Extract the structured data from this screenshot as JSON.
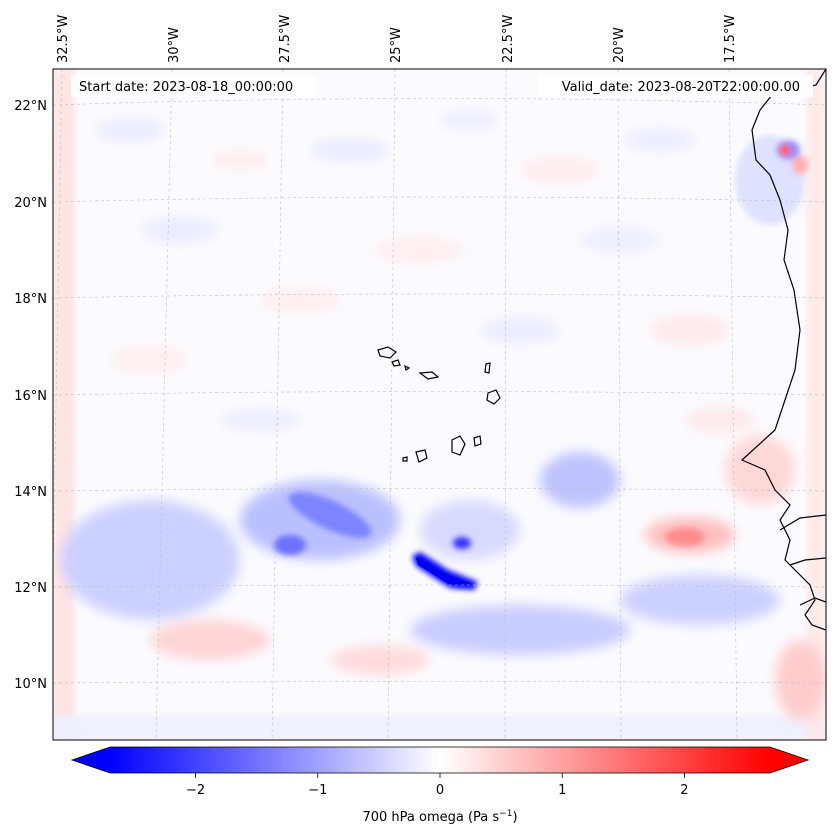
{
  "header": {
    "start_date": "Start date: 2023-08-18_00:00:00",
    "valid_date": "Valid_date: 2023-08-20T22:00:00.00"
  },
  "map": {
    "lon_labels": [
      "32.5°W",
      "30°W",
      "27.5°W",
      "25°W",
      "22.5°W",
      "20°W",
      "17.5°W"
    ],
    "lat_labels": [
      "22°N",
      "20°N",
      "18°N",
      "16°N",
      "14°N",
      "12°N",
      "10°N"
    ],
    "variable": "700 hPa omega"
  },
  "colorbar": {
    "label_prefix": "700 hPa omega (Pa s",
    "label_exp": "−1",
    "label_suffix": ")",
    "ticks": [
      "−2",
      "−1",
      "0",
      "1",
      "2"
    ],
    "vmin": -2.7,
    "vmax": 2.7,
    "extend": "both",
    "colormap": "bwr",
    "low_color": "#0000ff",
    "mid_color": "#ffffff",
    "high_color": "#ff0000"
  }
}
